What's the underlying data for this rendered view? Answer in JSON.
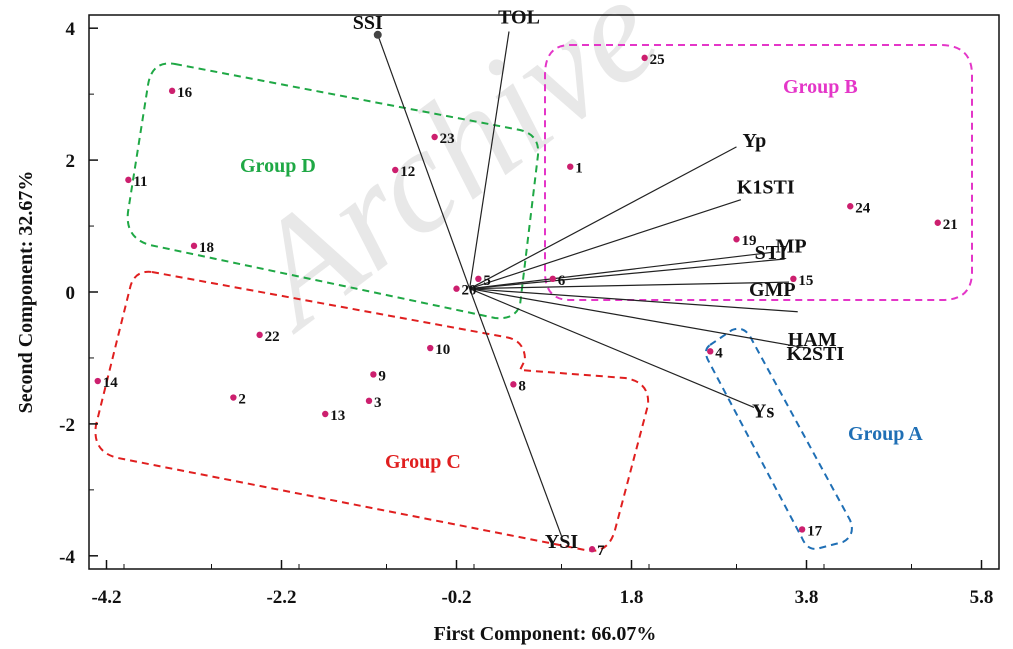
{
  "chart_data": {
    "type": "scatter",
    "subtype": "biplot",
    "xlabel": "First Component: 66.07%",
    "ylabel": "Second Component: 32.67%",
    "xlim": [
      -4.4,
      6.0
    ],
    "ylim": [
      -4.2,
      4.2
    ],
    "x_ticks": [
      "-4.2",
      "-2.2",
      "-0.2",
      "1.8",
      "3.8",
      "5.8"
    ],
    "y_ticks": [
      "4",
      "2",
      "0",
      "-2",
      "-4"
    ],
    "grid": false,
    "origin": [
      -0.05,
      0.05
    ],
    "point_color": "#cc1f6e",
    "points": [
      {
        "label": "1",
        "x": 1.1,
        "y": 1.9
      },
      {
        "label": "2",
        "x": -2.75,
        "y": -1.6
      },
      {
        "label": "3",
        "x": -1.2,
        "y": -1.65
      },
      {
        "label": "4",
        "x": 2.7,
        "y": -0.9
      },
      {
        "label": "5",
        "x": 0.05,
        "y": 0.2
      },
      {
        "label": "6",
        "x": 0.9,
        "y": 0.2
      },
      {
        "label": "7",
        "x": 1.35,
        "y": -3.9
      },
      {
        "label": "8",
        "x": 0.45,
        "y": -1.4
      },
      {
        "label": "9",
        "x": -1.15,
        "y": -1.25
      },
      {
        "label": "10",
        "x": -0.5,
        "y": -0.85
      },
      {
        "label": "11",
        "x": -3.95,
        "y": 1.7
      },
      {
        "label": "12",
        "x": -0.9,
        "y": 1.85
      },
      {
        "label": "13",
        "x": -1.7,
        "y": -1.85
      },
      {
        "label": "14",
        "x": -4.3,
        "y": -1.35
      },
      {
        "label": "15",
        "x": 3.65,
        "y": 0.2
      },
      {
        "label": "16",
        "x": -3.45,
        "y": 3.05
      },
      {
        "label": "17",
        "x": 3.75,
        "y": -3.6
      },
      {
        "label": "18",
        "x": -3.2,
        "y": 0.7
      },
      {
        "label": "19",
        "x": 3.0,
        "y": 0.8
      },
      {
        "label": "20",
        "x": -0.2,
        "y": 0.05
      },
      {
        "label": "21",
        "x": 5.3,
        "y": 1.05
      },
      {
        "label": "22",
        "x": -2.45,
        "y": -0.65
      },
      {
        "label": "23",
        "x": -0.45,
        "y": 2.35
      },
      {
        "label": "24",
        "x": 4.3,
        "y": 1.3
      },
      {
        "label": "25",
        "x": 1.95,
        "y": 3.55
      }
    ],
    "vectors": [
      {
        "name": "SSI",
        "x": -1.1,
        "y": 3.9
      },
      {
        "name": "TOL",
        "x": 0.4,
        "y": 3.95
      },
      {
        "name": "Yp",
        "x": 3.0,
        "y": 2.2
      },
      {
        "name": "K1STI",
        "x": 3.05,
        "y": 1.4
      },
      {
        "name": "MP",
        "x": 3.4,
        "y": 0.6
      },
      {
        "name": "STI",
        "x": 3.55,
        "y": 0.5
      },
      {
        "name": "GMP",
        "x": 3.6,
        "y": 0.15
      },
      {
        "name": "HAM",
        "x": 3.7,
        "y": -0.3
      },
      {
        "name": "K2STI",
        "x": 3.8,
        "y": -0.85
      },
      {
        "name": "Ys",
        "x": 3.2,
        "y": -1.75
      },
      {
        "name": "YSI",
        "x": 1.0,
        "y": -3.7
      }
    ],
    "groups": [
      {
        "name": "Group A",
        "color": "#1f6fb5"
      },
      {
        "name": "Group B",
        "color": "#e436c8"
      },
      {
        "name": "Group C",
        "color": "#e01f1f"
      },
      {
        "name": "Group D",
        "color": "#1fa845"
      }
    ]
  },
  "watermark": "Archive"
}
